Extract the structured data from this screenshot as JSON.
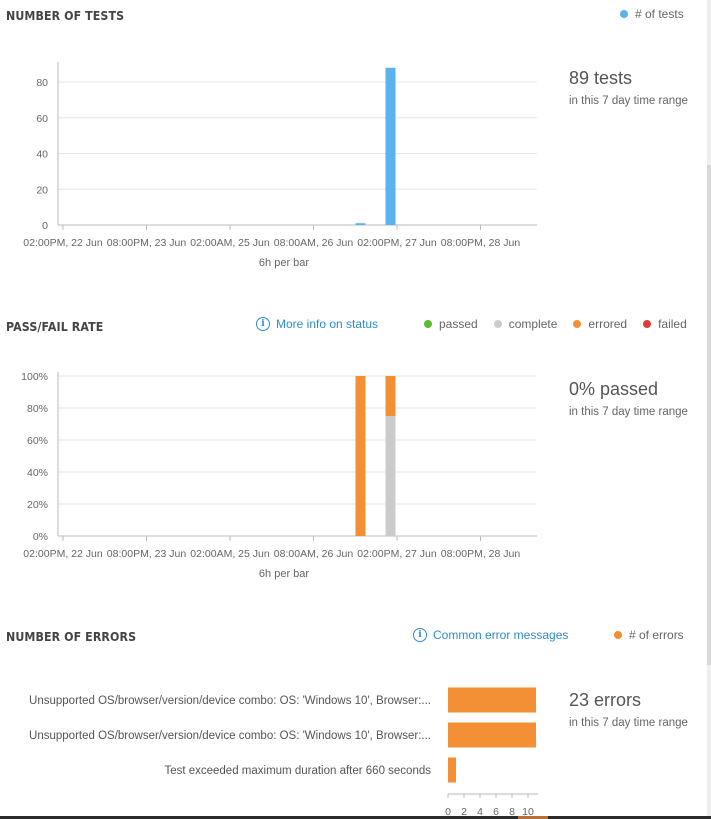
{
  "tests_section": {
    "title": "NUMBER OF TESTS",
    "legend_label": "# of tests",
    "summary_value": "89 tests",
    "summary_sub": "in this 7 day time range",
    "per_bar": "6h per bar"
  },
  "passfail_section": {
    "title": "PASS/FAIL RATE",
    "info_link": "More info on status",
    "legend": [
      {
        "label": "passed",
        "color": "#5cb82e"
      },
      {
        "label": "complete",
        "color": "#cccccc"
      },
      {
        "label": "errored",
        "color": "#f39035"
      },
      {
        "label": "failed",
        "color": "#e03a3a"
      }
    ],
    "summary_value": "0% passed",
    "summary_sub": "in this 7 day time range",
    "per_bar": "6h per bar"
  },
  "errors_section": {
    "title": "NUMBER OF ERRORS",
    "info_link": "Common error messages",
    "legend_label": "# of errors",
    "summary_value": "23 errors",
    "summary_sub": "in this 7 day time range"
  },
  "colors": {
    "tests_bar": "#5ab2ee",
    "complete": "#cccccc",
    "errored": "#f39035",
    "grid": "#e6e6e6",
    "axis": "#bbbbbb",
    "link": "#2d8ccc"
  },
  "chart_data": [
    {
      "type": "bar",
      "name": "tests",
      "x_tick_labels": [
        "02:00PM, 22 Jun",
        "08:00PM, 23 Jun",
        "02:00AM, 25 Jun",
        "08:00AM, 26 Jun",
        "02:00PM, 27 Jun",
        "08:00PM, 28 Jun"
      ],
      "y_ticks": [
        "0",
        "20",
        "40",
        "60",
        "80"
      ],
      "ylim": [
        0,
        89
      ],
      "bars": [
        {
          "slot": 28.7,
          "value": 1
        },
        {
          "slot": 31.7,
          "value": 88
        }
      ],
      "xlabel": "6h per bar"
    },
    {
      "type": "bar",
      "name": "pass-fail",
      "stacked": true,
      "x_tick_labels": [
        "02:00PM, 22 Jun",
        "08:00PM, 23 Jun",
        "02:00AM, 25 Jun",
        "08:00AM, 26 Jun",
        "02:00PM, 27 Jun",
        "08:00PM, 28 Jun"
      ],
      "y_ticks": [
        "0%",
        "20%",
        "40%",
        "60%",
        "80%",
        "100%"
      ],
      "ylim": [
        0,
        100
      ],
      "bars": [
        {
          "slot": 28.7,
          "complete": 0,
          "errored": 100
        },
        {
          "slot": 31.7,
          "complete": 75,
          "errored": 25
        }
      ],
      "xlabel": "6h per bar"
    },
    {
      "type": "bar",
      "name": "errors",
      "orientation": "horizontal",
      "categories": [
        "Unsupported OS/browser/version/device combo: OS: 'Windows 10', Browser:...",
        "Unsupported OS/browser/version/device combo: OS: 'Windows 10', Browser:...",
        "Test exceeded maximum duration after 660 seconds"
      ],
      "values": [
        11,
        11,
        1
      ],
      "x_ticks": [
        "0",
        "2",
        "4",
        "6",
        "8",
        "10"
      ]
    }
  ]
}
